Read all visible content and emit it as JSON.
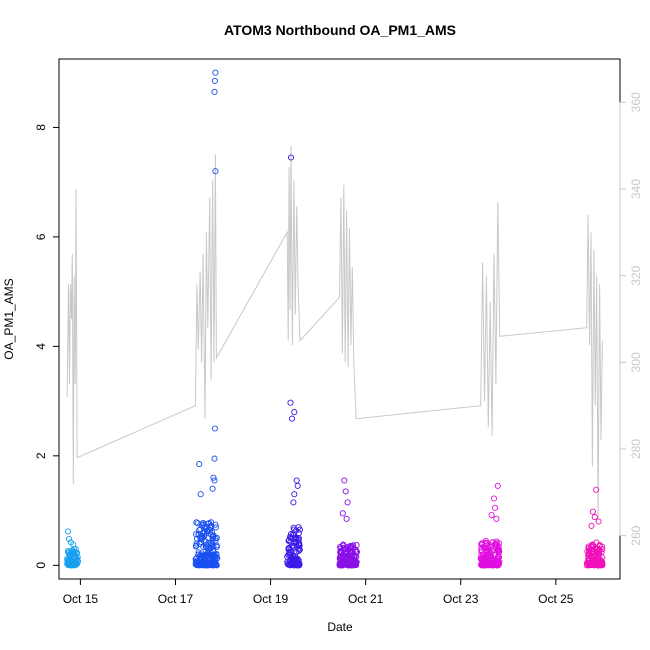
{
  "chart_data": {
    "type": "scatter",
    "title": "ATOM3 Northbound OA_PM1_AMS",
    "xlabel": "Date",
    "ylabel": "OA_PM1_AMS",
    "xlim": [
      14.55,
      26.35
    ],
    "ylim": [
      -0.25,
      9.25
    ],
    "y2lim": [
      250,
      370
    ],
    "x_ticks": [
      15,
      17,
      19,
      21,
      23,
      25
    ],
    "x_tick_labels": [
      "Oct 15",
      "Oct 17",
      "Oct 19",
      "Oct 21",
      "Oct 23",
      "Oct 25"
    ],
    "y_ticks": [
      0,
      2,
      4,
      6,
      8
    ],
    "y_tick_labels": [
      "0",
      "2",
      "4",
      "6",
      "8"
    ],
    "y2_ticks": [
      260,
      280,
      300,
      320,
      340,
      360
    ],
    "y2_tick_labels": [
      "260",
      "280",
      "300",
      "320",
      "340",
      "360"
    ],
    "grid": false,
    "colors": {
      "line": "#c8c8c8",
      "segment_colors": [
        "#1a9ff0",
        "#1a50f0",
        "#3a1ae8",
        "#8a10e8",
        "#e010e0",
        "#f010b8"
      ],
      "right_axis": "#c8c8c8"
    },
    "series": [
      {
        "style": "points",
        "segments": [
          {
            "x_range": [
              14.72,
              14.95
            ],
            "base": [
              0.0,
              0.3
            ],
            "outliers": [
              [
                14.74,
                0.62
              ],
              [
                14.76,
                0.48
              ],
              [
                14.8,
                0.42
              ],
              [
                14.85,
                0.38
              ]
            ]
          },
          {
            "x_range": [
              17.42,
              17.88
            ],
            "base": [
              0.0,
              0.8
            ],
            "outliers": [
              [
                17.84,
                9.0
              ],
              [
                17.83,
                8.85
              ],
              [
                17.82,
                8.65
              ],
              [
                17.84,
                7.2
              ],
              [
                17.83,
                2.5
              ],
              [
                17.82,
                1.95
              ],
              [
                17.5,
                1.85
              ],
              [
                17.53,
                1.3
              ],
              [
                17.8,
                1.6
              ],
              [
                17.82,
                1.55
              ],
              [
                17.78,
                1.4
              ]
            ]
          },
          {
            "x_range": [
              19.35,
              19.62
            ],
            "base": [
              0.0,
              0.7
            ],
            "outliers": [
              [
                19.43,
                7.45
              ],
              [
                19.42,
                2.97
              ],
              [
                19.5,
                2.8
              ],
              [
                19.45,
                2.68
              ],
              [
                19.55,
                1.55
              ],
              [
                19.57,
                1.45
              ],
              [
                19.5,
                1.3
              ],
              [
                19.48,
                1.15
              ]
            ]
          },
          {
            "x_range": [
              20.45,
              20.82
            ],
            "base": [
              0.0,
              0.4
            ],
            "outliers": [
              [
                20.55,
                1.55
              ],
              [
                20.58,
                1.35
              ],
              [
                20.62,
                1.15
              ],
              [
                20.52,
                0.95
              ],
              [
                20.6,
                0.85
              ]
            ]
          },
          {
            "x_range": [
              23.42,
              23.82
            ],
            "base": [
              0.0,
              0.45
            ],
            "outliers": [
              [
                23.78,
                1.45
              ],
              [
                23.7,
                1.22
              ],
              [
                23.72,
                1.05
              ],
              [
                23.65,
                0.92
              ],
              [
                23.75,
                0.85
              ]
            ]
          },
          {
            "x_range": [
              25.65,
              25.98
            ],
            "base": [
              0.0,
              0.45
            ],
            "outliers": [
              [
                25.85,
                1.38
              ],
              [
                25.78,
                0.98
              ],
              [
                25.82,
                0.88
              ],
              [
                25.9,
                0.8
              ],
              [
                25.75,
                0.72
              ]
            ]
          }
        ]
      },
      {
        "style": "line",
        "axis": "right",
        "x": [
          14.72,
          14.75,
          14.77,
          14.79,
          14.81,
          14.83,
          14.85,
          14.87,
          14.89,
          14.91,
          14.93,
          17.42,
          17.45,
          17.48,
          17.52,
          17.55,
          17.58,
          17.62,
          17.65,
          17.68,
          17.72,
          17.75,
          17.78,
          17.81,
          17.84,
          17.86,
          19.35,
          19.37,
          19.39,
          19.41,
          19.43,
          19.46,
          19.49,
          19.52,
          19.55,
          19.58,
          19.62,
          20.45,
          20.48,
          20.51,
          20.54,
          20.57,
          20.6,
          20.63,
          20.66,
          20.69,
          20.72,
          20.75,
          20.8,
          23.42,
          23.46,
          23.5,
          23.54,
          23.58,
          23.62,
          23.66,
          23.7,
          23.74,
          23.78,
          23.82,
          25.65,
          25.68,
          25.71,
          25.74,
          25.77,
          25.8,
          25.83,
          25.86,
          25.89,
          25.92,
          25.95,
          25.98
        ],
        "y": [
          292,
          318,
          295,
          318,
          310,
          325,
          272,
          320,
          295,
          340,
          278,
          290,
          318,
          303,
          321,
          300,
          325,
          287,
          330,
          308,
          338,
          296,
          342,
          300,
          348,
          301,
          330,
          305,
          345,
          312,
          350,
          304,
          342,
          311,
          336,
          318,
          305,
          315,
          338,
          302,
          341,
          300,
          335,
          299,
          331,
          304,
          322,
          300,
          287,
          290,
          323,
          291,
          320,
          285,
          314,
          283,
          325,
          295,
          337,
          306,
          308,
          334,
          304,
          330,
          276,
          326,
          290,
          320,
          264,
          318,
          282,
          305
        ]
      }
    ]
  }
}
